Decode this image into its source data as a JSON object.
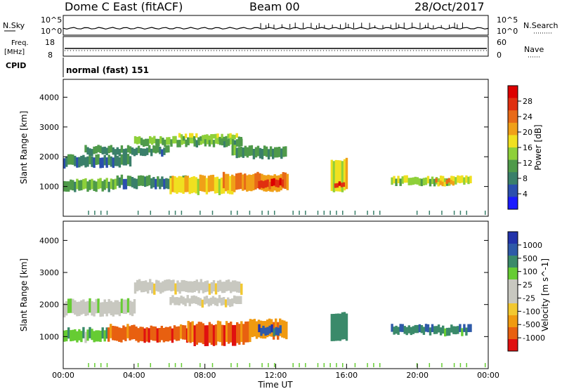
{
  "header": {
    "title": "Dome C East (fitACF)",
    "beam": "Beam 00",
    "date": "28/Oct/2017"
  },
  "top_panels": {
    "nsky_label": "N.Sky",
    "nsky_ticks": [
      "10^5",
      "10^0"
    ],
    "nsearch_label": "N.Search",
    "nsearch_ticks": [
      "10^5",
      "10^0"
    ],
    "freq_label_line1": "Freq.",
    "freq_label_line2": "[MHz]",
    "freq_ticks": [
      "18",
      "8"
    ],
    "nave_label": "Nave",
    "nave_ticks": [
      "60",
      "0"
    ],
    "cpid_label": "CPID",
    "cpid_text": "normal (fast) 151"
  },
  "colors": {
    "power": [
      "#1a1aff",
      "#2b4fae",
      "#3a7f6a",
      "#4f9a4a",
      "#8ed03a",
      "#f0e020",
      "#f0a018",
      "#e86a18",
      "#e03010",
      "#dd0000"
    ],
    "velocity": [
      "#e01010",
      "#e86010",
      "#f09a10",
      "#f2c830",
      "#c8c8c0",
      "#c8c8c0",
      "#66cc33",
      "#3a8a6a",
      "#2e5aa8",
      "#2233aa"
    ]
  },
  "chart_data": [
    {
      "type": "heatmap",
      "name": "power",
      "xlabel": "",
      "ylabel": "Slant Range [km]",
      "xlim": [
        0,
        24
      ],
      "ylim": [
        0,
        4600
      ],
      "yticks": [
        "1000",
        "2000",
        "3000",
        "4000"
      ],
      "colorbar_label": "Power [dB]",
      "colorbar_ticks": [
        "4",
        "8",
        "12",
        "16",
        "20",
        "24",
        "28"
      ],
      "colorbar_range": [
        0,
        32
      ],
      "bands": [
        {
          "t0": 0.0,
          "t1": 3.8,
          "r0": 1600,
          "r1": 2100,
          "v": 8
        },
        {
          "t0": 1.2,
          "t1": 6.0,
          "r0": 2000,
          "r1": 2400,
          "v": 9
        },
        {
          "t0": 4.0,
          "t1": 10.0,
          "r0": 2300,
          "r1": 2700,
          "v": 12
        },
        {
          "t0": 6.5,
          "t1": 10.0,
          "r0": 2500,
          "r1": 2800,
          "v": 14
        },
        {
          "t0": 0.0,
          "t1": 3.0,
          "r0": 800,
          "r1": 1300,
          "v": 12
        },
        {
          "t0": 3.0,
          "t1": 7.0,
          "r0": 900,
          "r1": 1400,
          "v": 9
        },
        {
          "t0": 6.0,
          "t1": 9.5,
          "r0": 700,
          "r1": 1400,
          "v": 18
        },
        {
          "t0": 9.0,
          "t1": 12.6,
          "r0": 800,
          "r1": 1500,
          "v": 22
        },
        {
          "t0": 11.0,
          "t1": 12.4,
          "r0": 900,
          "r1": 1300,
          "v": 28
        },
        {
          "t0": 15.1,
          "t1": 16.0,
          "r0": 800,
          "r1": 2000,
          "v": 18
        },
        {
          "t0": 15.3,
          "t1": 15.8,
          "r0": 900,
          "r1": 1200,
          "v": 28
        },
        {
          "t0": 18.5,
          "t1": 23.0,
          "r0": 1000,
          "r1": 1400,
          "v": 15
        },
        {
          "t0": 21.0,
          "t1": 22.0,
          "r0": 1000,
          "r1": 1300,
          "v": 22
        },
        {
          "t0": 9.5,
          "t1": 12.5,
          "r0": 1900,
          "r1": 2400,
          "v": 10
        }
      ]
    },
    {
      "type": "heatmap",
      "name": "velocity",
      "xlabel": "Time UT",
      "ylabel": "Slant Range [km]",
      "xlim": [
        0,
        24
      ],
      "ylim": [
        0,
        4600
      ],
      "xticks": [
        "00:00",
        "04:00",
        "08:00",
        "12:00",
        "16:00",
        "20:00",
        "00:00"
      ],
      "yticks": [
        "1000",
        "2000",
        "3000",
        "4000"
      ],
      "colorbar_label": "Velocity [m s^-1]",
      "colorbar_ticks": [
        "-1000",
        "-500",
        "-100",
        "-25",
        "25",
        "100",
        "500",
        "1000"
      ],
      "bands": [
        {
          "t0": 0.0,
          "t1": 4.0,
          "r0": 1600,
          "r1": 2200,
          "c": 5
        },
        {
          "t0": 4.0,
          "t1": 10.0,
          "r0": 2300,
          "r1": 2800,
          "c": 4
        },
        {
          "t0": 6.0,
          "t1": 10.0,
          "r0": 1900,
          "r1": 2300,
          "c": 4
        },
        {
          "t0": 0.0,
          "t1": 2.5,
          "r0": 800,
          "r1": 1300,
          "c": 6
        },
        {
          "t0": 2.5,
          "t1": 7.0,
          "r0": 800,
          "r1": 1400,
          "c": 1
        },
        {
          "t0": 7.0,
          "t1": 10.5,
          "r0": 700,
          "r1": 1500,
          "c": 1
        },
        {
          "t0": 10.5,
          "t1": 12.6,
          "r0": 900,
          "r1": 1600,
          "c": 2
        },
        {
          "t0": 11.0,
          "t1": 12.3,
          "r0": 1000,
          "r1": 1400,
          "c": 8
        },
        {
          "t0": 15.1,
          "t1": 16.0,
          "r0": 800,
          "r1": 1800,
          "c": 7
        },
        {
          "t0": 18.5,
          "t1": 23.0,
          "r0": 1000,
          "r1": 1400,
          "c": 7
        }
      ]
    }
  ],
  "series_top": {
    "nsky_level": 0.35,
    "nave_level": 0.4
  }
}
